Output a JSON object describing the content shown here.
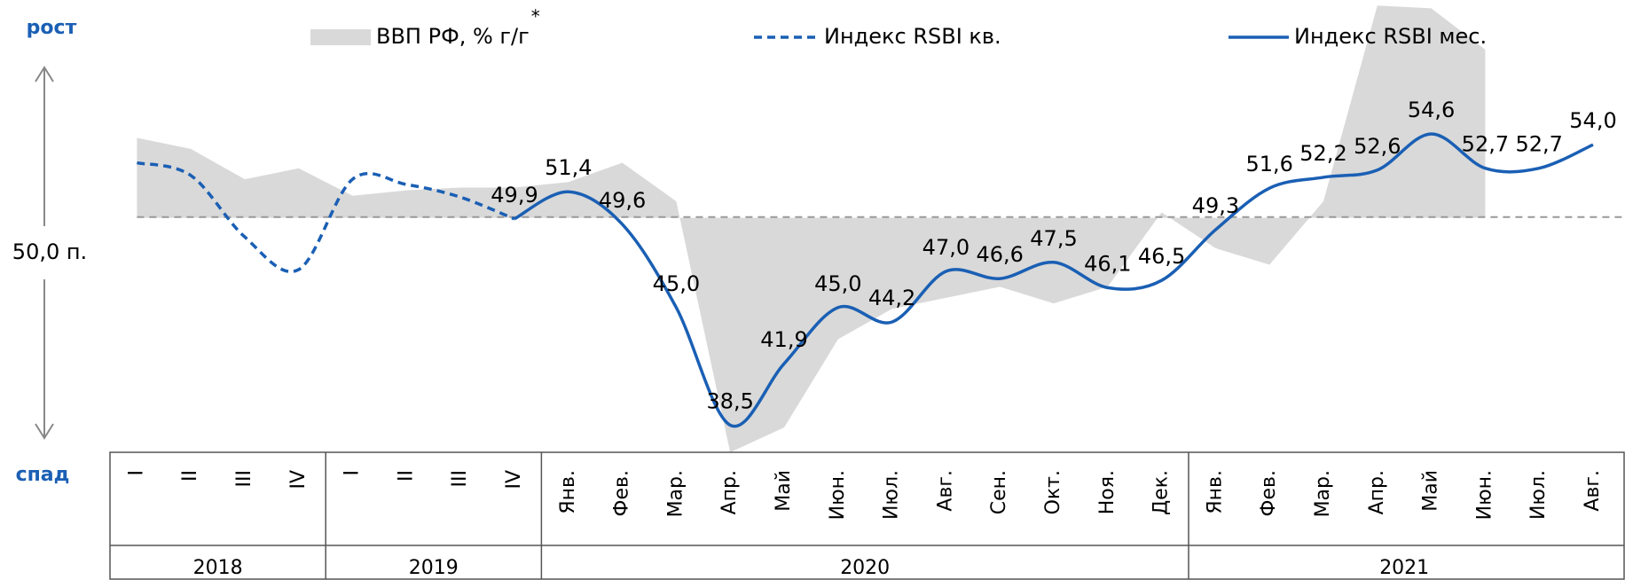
{
  "chart_data": {
    "type": "line",
    "up_label": "рост",
    "down_label": "спад",
    "baseline_label": "50,0 п.",
    "baseline": 50,
    "legend_note": "*",
    "categories": [
      "I",
      "II",
      "III",
      "IV",
      "I",
      "II",
      "III",
      "IV",
      "Янв.",
      "Фев.",
      "Мар.",
      "Апр.",
      "Май",
      "Июн.",
      "Июл.",
      "Авг.",
      "Сен.",
      "Окт.",
      "Ноя.",
      "Дек.",
      "Янв.",
      "Фев.",
      "Мар.",
      "Апр.",
      "Май",
      "Июн.",
      "Июл.",
      "Авг."
    ],
    "groups": [
      {
        "label": "2018",
        "count": 4
      },
      {
        "label": "2019",
        "count": 4
      },
      {
        "label": "2020",
        "count": 12
      },
      {
        "label": "2021",
        "count": 8
      }
    ],
    "ylim": [
      37,
      62
    ],
    "y2lim": [
      -8.5,
      7.9
    ],
    "series": [
      {
        "name": "ВВП РФ, % г/г",
        "style": "area",
        "axis": "y2",
        "color": "#d9d9d9",
        "values": [
          2.9,
          2.5,
          1.4,
          1.8,
          0.8,
          1.0,
          1.1,
          1.1,
          1.3,
          2.0,
          0.6,
          -8.5,
          -7.6,
          -4.4,
          -3.3,
          -2.9,
          -2.5,
          -3.1,
          -2.5,
          0.2,
          -1.1,
          -1.7,
          0.6,
          7.7,
          7.6,
          6.1,
          null,
          null
        ]
      },
      {
        "name": "Индекс RSBI кв.",
        "style": "dashed",
        "color": "#1a5fb4",
        "values": [
          53.0,
          52.3,
          48.9,
          47.1,
          52.1,
          51.8,
          51.1,
          49.9,
          null,
          null,
          null,
          null,
          null,
          null,
          null,
          null,
          null,
          null,
          null,
          null,
          null,
          null,
          null,
          null,
          null,
          null,
          null,
          null
        ],
        "value_labels": [
          null,
          null,
          null,
          null,
          null,
          null,
          null,
          "49,9",
          null,
          null,
          null,
          null,
          null,
          null,
          null,
          null,
          null,
          null,
          null,
          null,
          null,
          null,
          null,
          null,
          null,
          null,
          null,
          null
        ]
      },
      {
        "name": "Индекс RSBI мес.",
        "style": "solid",
        "color": "#1a5fb4",
        "values": [
          null,
          null,
          null,
          null,
          null,
          null,
          null,
          49.9,
          51.4,
          49.6,
          45.0,
          38.5,
          41.9,
          45.0,
          44.2,
          47.0,
          46.6,
          47.5,
          46.1,
          46.5,
          49.3,
          51.6,
          52.2,
          52.6,
          54.6,
          52.7,
          52.7,
          54.0
        ],
        "value_labels": [
          null,
          null,
          null,
          null,
          null,
          null,
          null,
          null,
          "51,4",
          "49,6",
          "45,0",
          "38,5",
          "41,9",
          "45,0",
          "44,2",
          "47,0",
          "46,6",
          "47,5",
          "46,1",
          "46,5",
          "49,3",
          "51,6",
          "52,2",
          "52,6",
          "54,6",
          "52,7",
          "52,7",
          "54,0"
        ]
      }
    ]
  }
}
